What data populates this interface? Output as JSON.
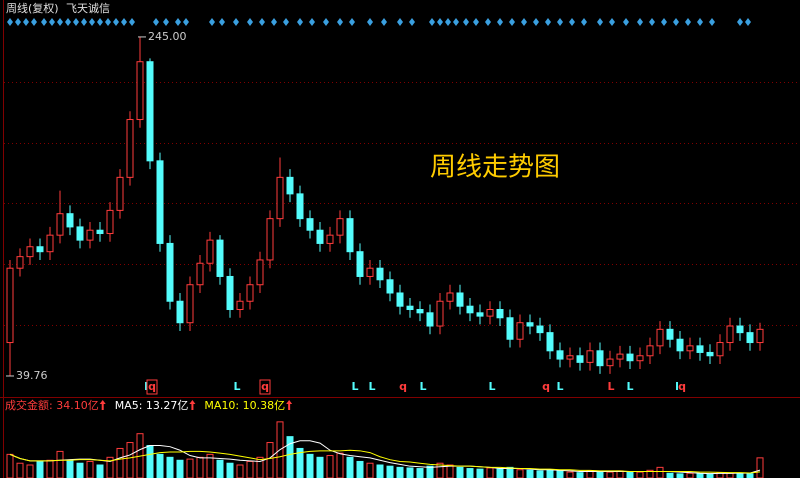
{
  "chart_data": {
    "type": "candlestick",
    "title": "周线(复权)",
    "stock_name": "飞天诚信",
    "annotation": "周线走势图",
    "ylim": [
      34.3,
      249.2
    ],
    "price_labels": [
      {
        "value": 245.0,
        "label": "245.00"
      },
      {
        "value": 39.76,
        "label": "39.76"
      }
    ],
    "up_color": "#ff3c3c",
    "down_color": "#54fcfc",
    "open": [
      60,
      105,
      112,
      118,
      115,
      125,
      138,
      130,
      122,
      128,
      126,
      140,
      160,
      195,
      230,
      170,
      120,
      85,
      72,
      95,
      108,
      122,
      100,
      80,
      85,
      95,
      110,
      135,
      160,
      150,
      135,
      128,
      120,
      125,
      135,
      115,
      100,
      105,
      98,
      90,
      82,
      80,
      78,
      70,
      85,
      90,
      82,
      78,
      76,
      80,
      75,
      62,
      72,
      70,
      66,
      55,
      50,
      52,
      48,
      55,
      46,
      50,
      53,
      49,
      52,
      58,
      68,
      62,
      55,
      58,
      54,
      52,
      60,
      70,
      66,
      60
    ],
    "high": [
      110,
      117,
      123,
      123,
      130,
      152,
      143,
      135,
      133,
      133,
      145,
      165,
      200,
      245,
      232,
      175,
      125,
      90,
      100,
      113,
      127,
      125,
      105,
      90,
      100,
      115,
      140,
      172,
      165,
      155,
      140,
      133,
      130,
      140,
      140,
      120,
      110,
      110,
      103,
      95,
      87,
      85,
      83,
      90,
      95,
      95,
      87,
      83,
      85,
      85,
      80,
      77,
      77,
      75,
      71,
      60,
      57,
      57,
      60,
      60,
      55,
      58,
      58,
      57,
      63,
      73,
      73,
      67,
      63,
      63,
      59,
      65,
      75,
      75,
      71,
      72
    ],
    "low": [
      39.76,
      100,
      107,
      110,
      110,
      120,
      125,
      117,
      117,
      121,
      121,
      135,
      155,
      190,
      165,
      115,
      80,
      67,
      67,
      90,
      103,
      95,
      75,
      75,
      80,
      90,
      105,
      130,
      145,
      130,
      123,
      115,
      115,
      120,
      110,
      95,
      95,
      93,
      85,
      77,
      75,
      73,
      65,
      65,
      80,
      77,
      73,
      71,
      71,
      70,
      57,
      57,
      65,
      61,
      50,
      45,
      45,
      43,
      43,
      41,
      41,
      45,
      44,
      44,
      47,
      53,
      57,
      50,
      50,
      49,
      47,
      47,
      55,
      61,
      55,
      55
    ],
    "close": [
      105,
      112,
      118,
      115,
      125,
      138,
      130,
      122,
      128,
      126,
      140,
      160,
      195,
      230,
      170,
      120,
      85,
      72,
      95,
      108,
      122,
      100,
      80,
      85,
      95,
      110,
      135,
      160,
      150,
      135,
      128,
      120,
      125,
      135,
      115,
      100,
      105,
      98,
      90,
      82,
      80,
      78,
      70,
      85,
      90,
      82,
      78,
      76,
      80,
      75,
      62,
      72,
      70,
      66,
      55,
      50,
      52,
      48,
      55,
      46,
      50,
      53,
      49,
      52,
      58,
      68,
      62,
      55,
      58,
      54,
      52,
      60,
      70,
      66,
      60,
      68
    ],
    "signals": [
      "l",
      "q",
      "L",
      "q",
      "L",
      "L",
      "q",
      "L",
      "L",
      "q",
      "L",
      "L",
      "L",
      "l",
      "q"
    ],
    "signal_colors": [
      "#54fcfc",
      "#ff3c3c",
      "#54fcfc",
      "#ff3c3c",
      "#54fcfc",
      "#54fcfc",
      "#ff3c3c",
      "#54fcfc",
      "#54fcfc",
      "#ff3c3c",
      "#54fcfc",
      "#ff3c3c",
      "#54fcfc",
      "#54fcfc",
      "#ff3c3c"
    ],
    "volume_ylim": [
      0,
      110
    ],
    "volume_series": [
      {
        "name": "成交金额: 34.10亿",
        "color": "#ff3c3c",
        "values": [
          40,
          25,
          22,
          28,
          30,
          45,
          30,
          25,
          28,
          22,
          35,
          50,
          60,
          75,
          55,
          40,
          35,
          30,
          32,
          35,
          40,
          30,
          25,
          22,
          28,
          35,
          60,
          95,
          70,
          50,
          40,
          35,
          38,
          42,
          35,
          28,
          25,
          22,
          20,
          18,
          17,
          16,
          20,
          25,
          22,
          18,
          16,
          15,
          17,
          15,
          18,
          14,
          13,
          12,
          14,
          12,
          10,
          9,
          12,
          11,
          10,
          12,
          11,
          10,
          13,
          18,
          8,
          7,
          8,
          7.45,
          7,
          9,
          8,
          8,
          7.25,
          34.1
        ]
      },
      {
        "name": "MA5: 13.27亿",
        "color": "#ffffff",
        "values": [
          40,
          33,
          29,
          29,
          29,
          30,
          31,
          32,
          32,
          30,
          28,
          34,
          39,
          48,
          55,
          55,
          53,
          47,
          38,
          34,
          34,
          33,
          32,
          30,
          29,
          28,
          34,
          48,
          58,
          63,
          63,
          59,
          47,
          41,
          38,
          36,
          34,
          30,
          26,
          23,
          20,
          19,
          18,
          19,
          20,
          20,
          20,
          19,
          18,
          16,
          16,
          16,
          15,
          14,
          14,
          13,
          12,
          11,
          11,
          11,
          11,
          11,
          11,
          11,
          11,
          11,
          11,
          10,
          9,
          8,
          7.5,
          7.8,
          7.9,
          8.2,
          8.3,
          13.27
        ]
      },
      {
        "name": "MA10: 10.38亿",
        "color": "#ffff00",
        "values": [
          40,
          33,
          29,
          29,
          29,
          30,
          30,
          31,
          31,
          30,
          29,
          32,
          34,
          37,
          40,
          43,
          44,
          44,
          45,
          45,
          44,
          42,
          40,
          37,
          34,
          31,
          33,
          36,
          40,
          43,
          45,
          46,
          46,
          46,
          47,
          46,
          43,
          36,
          31,
          28,
          27,
          25,
          23,
          22,
          21,
          20,
          20,
          19,
          18,
          18,
          17,
          16,
          16,
          15,
          15,
          14,
          14,
          13,
          13,
          12,
          12,
          12,
          11,
          11,
          11,
          11,
          11,
          11,
          11,
          10,
          10,
          9.5,
          9.2,
          9,
          8.5,
          10.38
        ]
      }
    ]
  }
}
